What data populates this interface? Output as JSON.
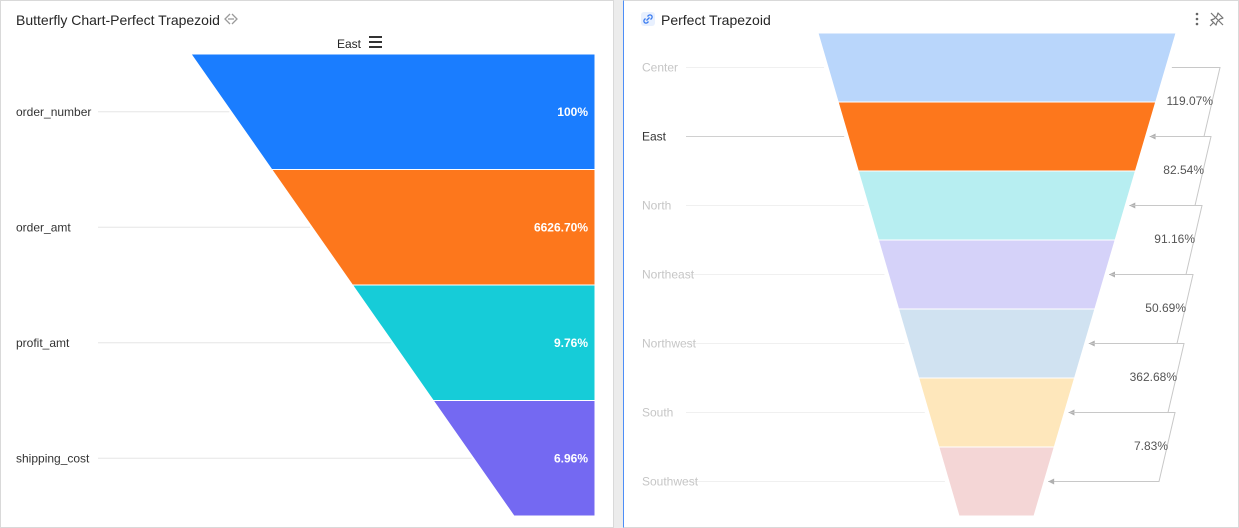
{
  "left_panel": {
    "title": "Butterfly Chart-Perfect Trapezoid",
    "legend_title": "East"
  },
  "right_panel": {
    "title": "Perfect Trapezoid"
  },
  "colors": {
    "left_series": [
      "#1a7dff",
      "#fd771c",
      "#16ccd8",
      "#7469f2"
    ],
    "right_series": [
      "#b9d6fb",
      "#fd771c",
      "#b7eef1",
      "#d5d2f9",
      "#d0e2f1",
      "#fee7bb",
      "#f4d6d6"
    ],
    "axis_line": "#e6e6e6",
    "connector": "#c8c8c8"
  },
  "chart_data": [
    {
      "type": "funnel",
      "title": "Butterfly Chart-Perfect Trapezoid",
      "series_name": "East",
      "categories": [
        "order_number",
        "order_amt",
        "profit_amt",
        "shipping_cost"
      ],
      "labels": [
        "100%",
        "6626.70%",
        "9.76%",
        "6.96%"
      ],
      "values": [
        100,
        6626.7,
        9.76,
        6.96
      ]
    },
    {
      "type": "funnel",
      "title": "Perfect Trapezoid",
      "categories": [
        "Center",
        "East",
        "North",
        "Northeast",
        "Northwest",
        "South",
        "Southwest"
      ],
      "highlighted_category": "East",
      "conversion_labels": [
        "119.07%",
        "82.54%",
        "91.16%",
        "50.69%",
        "362.68%",
        "7.83%"
      ],
      "conversion_values": [
        119.07,
        82.54,
        91.16,
        50.69,
        362.68,
        7.83
      ]
    }
  ]
}
